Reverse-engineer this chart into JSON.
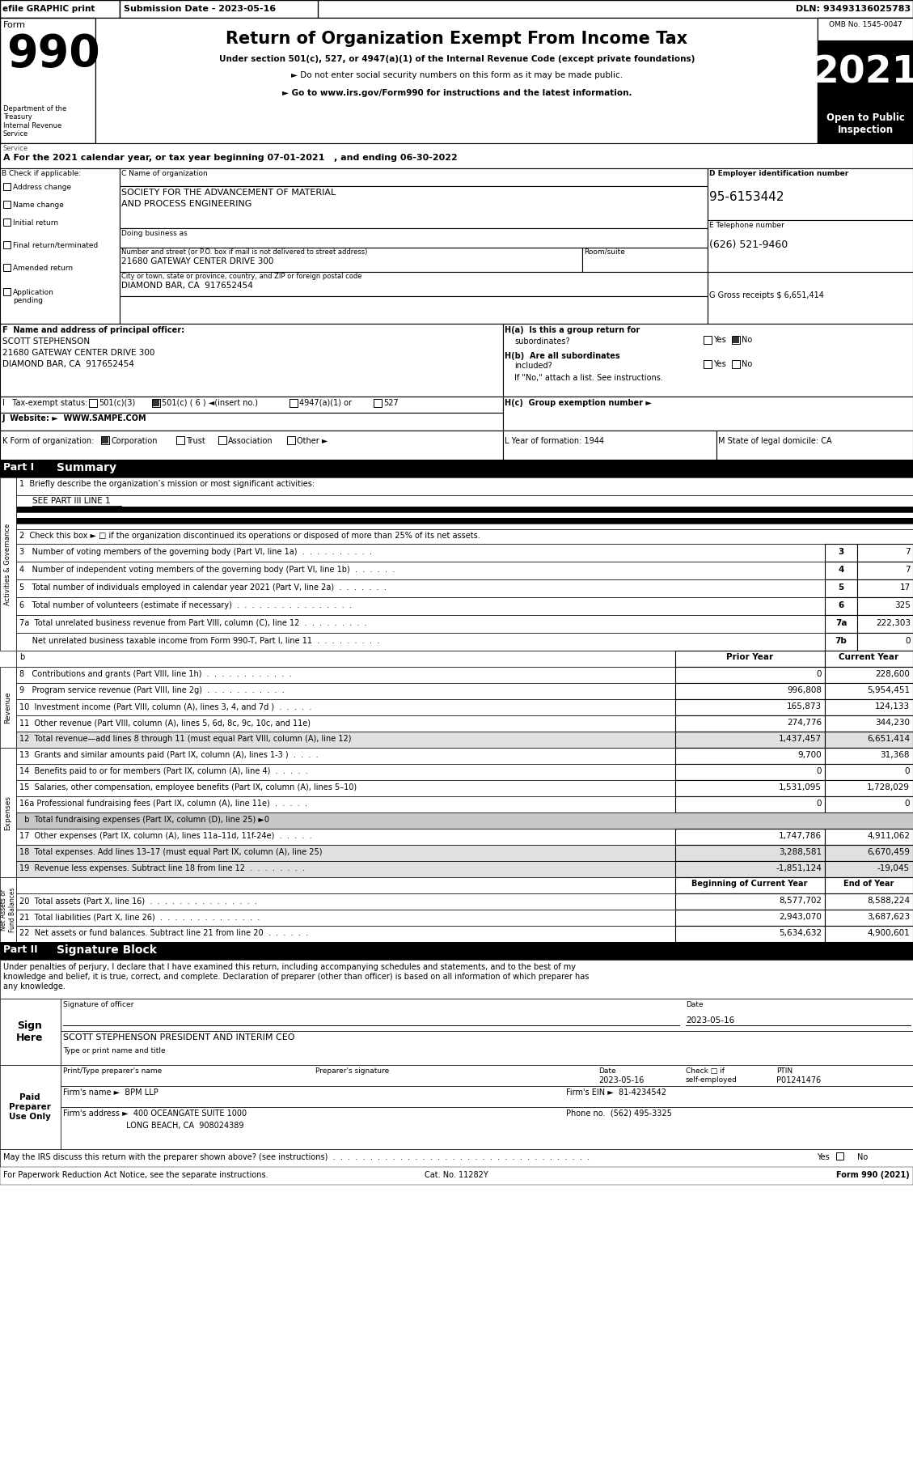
{
  "title": "Return of Organization Exempt From Income Tax",
  "form_number": "990",
  "year": "2021",
  "omb": "OMB No. 1545-0047",
  "efile_text": "efile GRAPHIC print",
  "submission_date": "Submission Date - 2023-05-16",
  "dln": "DLN: 93493136025783",
  "under_section": "Under section 501(c), 527, or 4947(a)(1) of the Internal Revenue Code (except private foundations)",
  "bullet1": "► Do not enter social security numbers on this form as it may be made public.",
  "bullet2": "► Go to www.irs.gov/Form990 for instructions and the latest information.",
  "tax_year_line": "A For the 2021 calendar year, or tax year beginning 07-01-2021   , and ending 06-30-2022",
  "b_label": "B Check if applicable:",
  "b_options": [
    "Address change",
    "Name change",
    "Initial return",
    "Final return/terminated",
    "Amended return",
    "Application\npending"
  ],
  "org_name_line1": "SOCIETY FOR THE ADVANCEMENT OF MATERIAL",
  "org_name_line2": "AND PROCESS ENGINEERING",
  "dba_label": "Doing business as",
  "address_label": "Number and street (or P.O. box if mail is not delivered to street address)",
  "address": "21680 GATEWAY CENTER DRIVE 300",
  "room_label": "Room/suite",
  "city_label": "City or town, state or province, country, and ZIP or foreign postal code",
  "city": "DIAMOND BAR, CA  917652454",
  "d_label": "D Employer identification number",
  "ein": "95-6153442",
  "e_label": "E Telephone number",
  "phone": "(626) 521-9460",
  "g_gross": "G Gross receipts $ 6,651,414",
  "officer_name": "SCOTT STEPHENSON",
  "officer_address": "21680 GATEWAY CENTER DRIVE 300",
  "officer_city": "DIAMOND BAR, CA  917652454",
  "line3_label": "3   Number of voting members of the governing body (Part VI, line 1a)  .  .  .  .  .  .  .  .  .  .",
  "line3_num": "3",
  "line3_val": "7",
  "line4_label": "4   Number of independent voting members of the governing body (Part VI, line 1b)  .  .  .  .  .  .",
  "line4_num": "4",
  "line4_val": "7",
  "line5_label": "5   Total number of individuals employed in calendar year 2021 (Part V, line 2a)  .  .  .  .  .  .  .",
  "line5_num": "5",
  "line5_val": "17",
  "line6_label": "6   Total number of volunteers (estimate if necessary)  .  .  .  .  .  .  .  .  .  .  .  .  .  .  .  .",
  "line6_num": "6",
  "line6_val": "325",
  "line7a_label": "7a  Total unrelated business revenue from Part VIII, column (C), line 12  .  .  .  .  .  .  .  .  .",
  "line7a_num": "7a",
  "line7a_val": "222,303",
  "line7b_label": "     Net unrelated business taxable income from Form 990-T, Part I, line 11  .  .  .  .  .  .  .  .  .",
  "line7b_num": "7b",
  "line7b_val": "0",
  "col_prior": "Prior Year",
  "col_current": "Current Year",
  "line8_label": "8   Contributions and grants (Part VIII, line 1h)  .  .  .  .  .  .  .  .  .  .  .  .",
  "line8_prior": "0",
  "line8_current": "228,600",
  "line9_label": "9   Program service revenue (Part VIII, line 2g)  .  .  .  .  .  .  .  .  .  .  .",
  "line9_prior": "996,808",
  "line9_current": "5,954,451",
  "line10_label": "10  Investment income (Part VIII, column (A), lines 3, 4, and 7d )  .  .  .  .  .",
  "line10_prior": "165,873",
  "line10_current": "124,133",
  "line11_label": "11  Other revenue (Part VIII, column (A), lines 5, 6d, 8c, 9c, 10c, and 11e)",
  "line11_prior": "274,776",
  "line11_current": "344,230",
  "line12_label": "12  Total revenue—add lines 8 through 11 (must equal Part VIII, column (A), line 12)",
  "line12_prior": "1,437,457",
  "line12_current": "6,651,414",
  "line13_label": "13  Grants and similar amounts paid (Part IX, column (A), lines 1-3 )  .  .  .  .",
  "line13_prior": "9,700",
  "line13_current": "31,368",
  "line14_label": "14  Benefits paid to or for members (Part IX, column (A), line 4)  .  .  .  .  .",
  "line14_prior": "0",
  "line14_current": "0",
  "line15_label": "15  Salaries, other compensation, employee benefits (Part IX, column (A), lines 5–10)",
  "line15_prior": "1,531,095",
  "line15_current": "1,728,029",
  "line16a_label": "16a Professional fundraising fees (Part IX, column (A), line 11e)  .  .  .  .  .",
  "line16a_prior": "0",
  "line16a_current": "0",
  "line16b_label": "  b  Total fundraising expenses (Part IX, column (D), line 25) ►0",
  "line17_label": "17  Other expenses (Part IX, column (A), lines 11a–11d, 11f-24e)  .  .  .  .  .",
  "line17_prior": "1,747,786",
  "line17_current": "4,911,062",
  "line18_label": "18  Total expenses. Add lines 13–17 (must equal Part IX, column (A), line 25)",
  "line18_prior": "3,288,581",
  "line18_current": "6,670,459",
  "line19_label": "19  Revenue less expenses. Subtract line 18 from line 12  .  .  .  .  .  .  .  .",
  "line19_prior": "-1,851,124",
  "line19_current": "-19,045",
  "col_begin": "Beginning of Current Year",
  "col_end": "End of Year",
  "line20_label": "20  Total assets (Part X, line 16)  .  .  .  .  .  .  .  .  .  .  .  .  .  .  .",
  "line20_begin": "8,577,702",
  "line20_end": "8,588,224",
  "line21_label": "21  Total liabilities (Part X, line 26)  .  .  .  .  .  .  .  .  .  .  .  .  .  .",
  "line21_begin": "2,943,070",
  "line21_end": "3,687,623",
  "line22_label": "22  Net assets or fund balances. Subtract line 21 from line 20  .  .  .  .  .  .",
  "line22_begin": "5,634,632",
  "line22_end": "4,900,601",
  "sig_text1": "Under penalties of perjury, I declare that I have examined this return, including accompanying schedules and statements, and to the best of my",
  "sig_text2": "knowledge and belief, it is true, correct, and complete. Declaration of preparer (other than officer) is based on all information of which preparer has",
  "sig_text3": "any knowledge.",
  "sig_date": "2023-05-16",
  "sig_name": "SCOTT STEPHENSON PRESIDENT AND INTERIM CEO",
  "preparer_date": "2023-05-16",
  "preparer_ptin": "P01241476",
  "firm_name": "BPM LLP",
  "firm_ein": "81-4234542",
  "firm_address": "400 OCEANGATE SUITE 1000",
  "firm_city": "LONG BEACH, CA  908024389",
  "firm_phone": "(562) 495-3325",
  "paperwork_label": "For Paperwork Reduction Act Notice, see the separate instructions.",
  "cat_no": "Cat. No. 11282Y",
  "form_footer": "Form 990 (2021)"
}
